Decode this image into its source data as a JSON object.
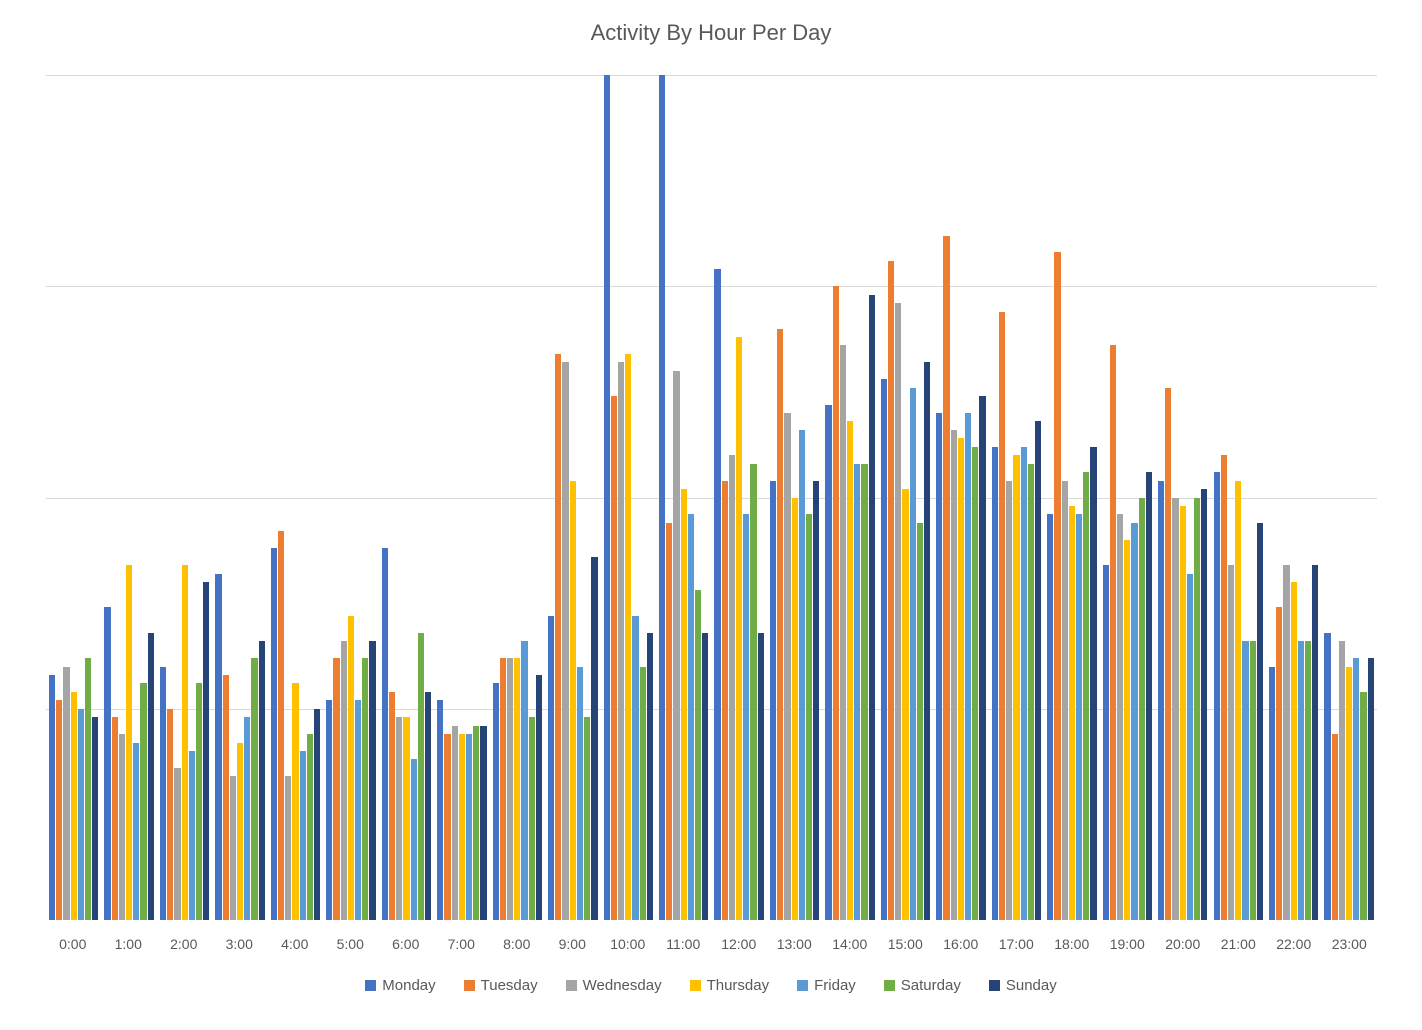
{
  "chart": {
    "type": "bar",
    "title": "Activity By Hour Per Day",
    "title_fontsize": 22,
    "title_color": "#595959",
    "background_color": "#ffffff",
    "grid_color": "#d9d9d9",
    "axis_font_color": "#595959",
    "axis_fontsize": 14,
    "legend_fontsize": 15,
    "ymax": 100,
    "gridline_positions_pct_from_top": [
      0,
      25,
      50,
      75
    ],
    "categories": [
      "0:00",
      "1:00",
      "2:00",
      "3:00",
      "4:00",
      "5:00",
      "6:00",
      "7:00",
      "8:00",
      "9:00",
      "10:00",
      "11:00",
      "12:00",
      "13:00",
      "14:00",
      "15:00",
      "16:00",
      "17:00",
      "18:00",
      "19:00",
      "20:00",
      "21:00",
      "22:00",
      "23:00"
    ],
    "series": [
      {
        "name": "Monday",
        "color": "#4472c4",
        "values": [
          29,
          37,
          30,
          41,
          44,
          26,
          44,
          26,
          28,
          36,
          125,
          125,
          77,
          52,
          61,
          64,
          60,
          56,
          48,
          42,
          52,
          53,
          30,
          34
        ]
      },
      {
        "name": "Tuesday",
        "color": "#ed7d31",
        "values": [
          26,
          24,
          25,
          29,
          46,
          31,
          27,
          22,
          31,
          67,
          62,
          47,
          52,
          70,
          75,
          78,
          81,
          72,
          79,
          68,
          63,
          55,
          37,
          22
        ]
      },
      {
        "name": "Wednesday",
        "color": "#a5a5a5",
        "values": [
          30,
          22,
          18,
          17,
          17,
          33,
          24,
          23,
          31,
          66,
          66,
          65,
          55,
          60,
          68,
          73,
          58,
          52,
          52,
          48,
          50,
          42,
          42,
          33
        ]
      },
      {
        "name": "Thursday",
        "color": "#ffc000",
        "values": [
          27,
          42,
          42,
          21,
          28,
          36,
          24,
          22,
          31,
          52,
          67,
          51,
          69,
          50,
          59,
          51,
          57,
          55,
          49,
          45,
          49,
          52,
          40,
          30
        ]
      },
      {
        "name": "Friday",
        "color": "#5b9bd5",
        "values": [
          25,
          21,
          20,
          24,
          20,
          26,
          19,
          22,
          33,
          30,
          36,
          48,
          48,
          58,
          54,
          63,
          60,
          56,
          48,
          47,
          41,
          33,
          33,
          31
        ]
      },
      {
        "name": "Saturday",
        "color": "#70ad47",
        "values": [
          31,
          28,
          28,
          31,
          22,
          31,
          34,
          23,
          24,
          24,
          30,
          39,
          54,
          48,
          54,
          47,
          56,
          54,
          53,
          50,
          50,
          33,
          33,
          27
        ]
      },
      {
        "name": "Sunday",
        "color": "#264478",
        "values": [
          24,
          34,
          40,
          33,
          25,
          33,
          27,
          23,
          29,
          43,
          34,
          34,
          34,
          52,
          74,
          66,
          62,
          59,
          56,
          53,
          51,
          47,
          42,
          31
        ]
      }
    ]
  }
}
